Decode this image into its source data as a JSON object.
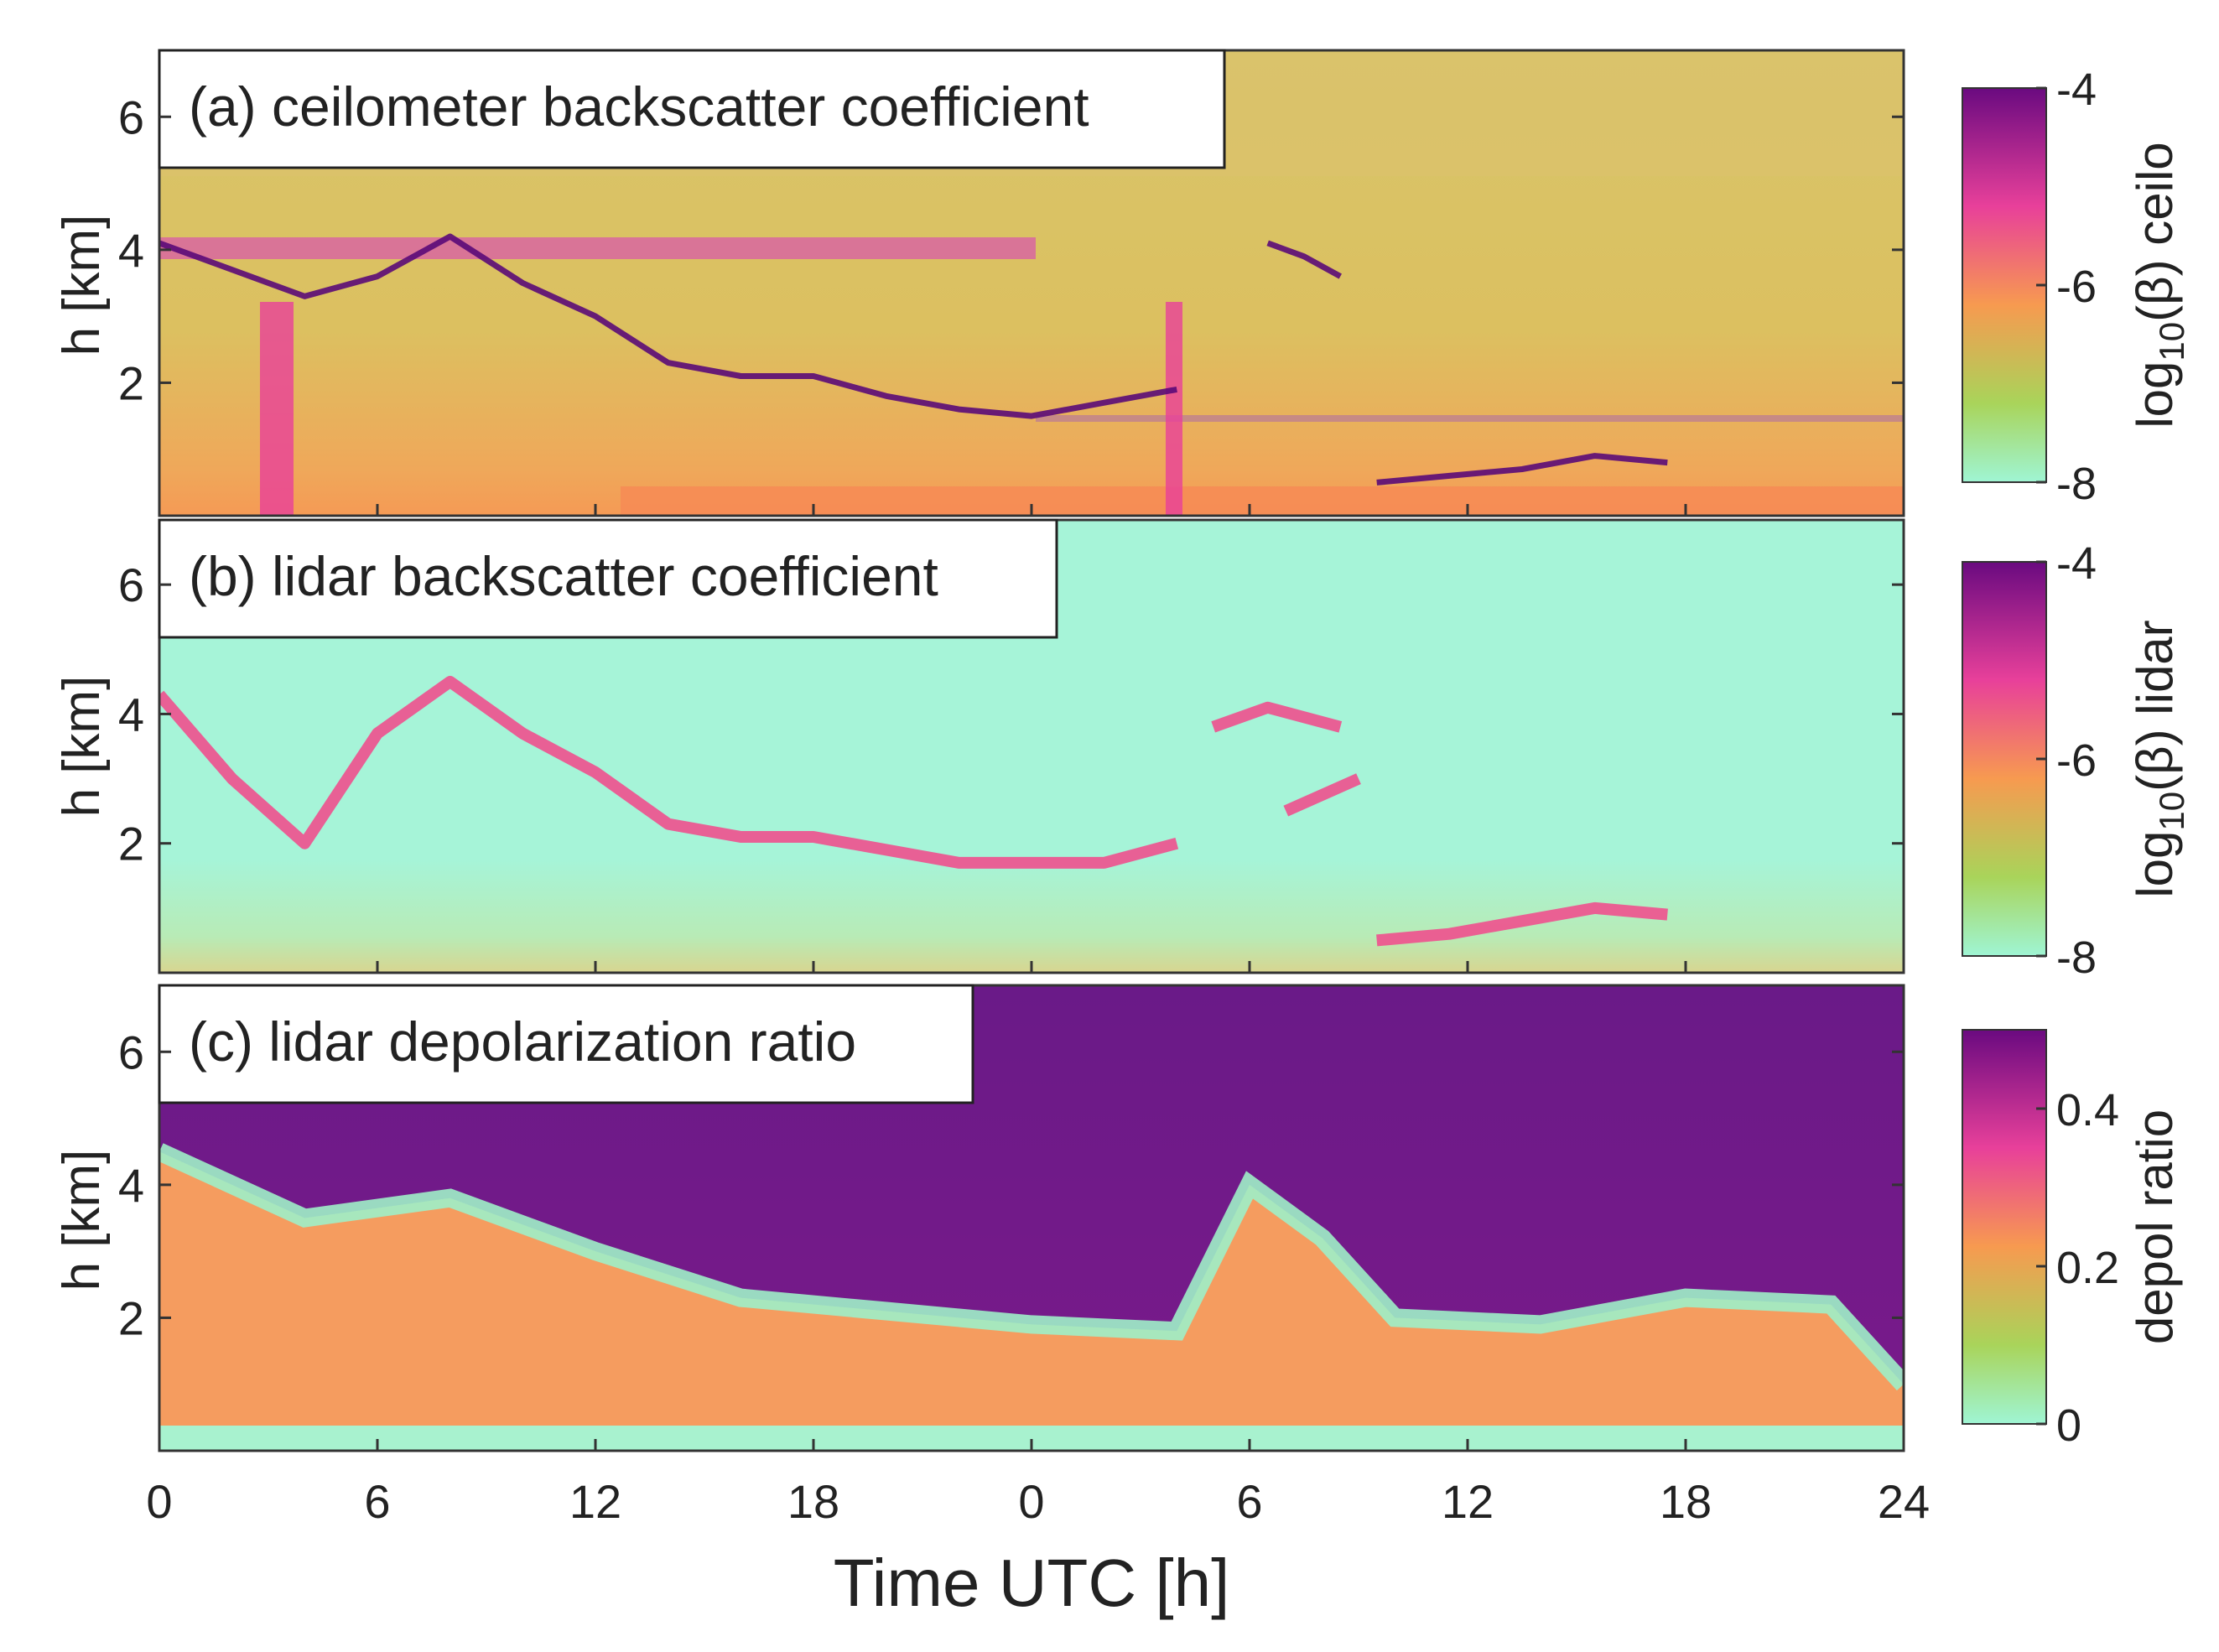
{
  "chart_data": {
    "type": "heatmap",
    "x_axis": {
      "label": "Time UTC [h]",
      "tick_labels": [
        "0",
        "6",
        "12",
        "18",
        "0",
        "6",
        "12",
        "18",
        "24"
      ],
      "tick_values_h": [
        0,
        6,
        12,
        18,
        24,
        30,
        36,
        42,
        48
      ],
      "range_h": [
        0,
        48
      ]
    },
    "y_axis": {
      "label": "h [km]",
      "tick_labels": [
        "2",
        "4",
        "6"
      ],
      "tick_values_km": [
        2,
        4,
        6
      ],
      "range_km": [
        0,
        7
      ]
    },
    "panels": [
      {
        "id": "a",
        "title": "(a) ceilometer backscatter coefficient",
        "colorbar": {
          "label_prefix": "log",
          "label_subscript": "10",
          "label_suffix": "(β) ceilo",
          "ticks": [
            "-4",
            "-6",
            "-8"
          ],
          "tick_values": [
            -4,
            -6,
            -8
          ],
          "range": [
            -8,
            -4
          ]
        },
        "cloud_layers": [
          {
            "t": [
              0,
              2,
              4,
              6,
              8,
              10,
              12,
              14,
              16,
              18,
              20,
              22,
              24,
              26,
              28
            ],
            "h": [
              4.1,
              3.7,
              3.3,
              3.6,
              4.2,
              3.5,
              3.0,
              2.3,
              2.1,
              2.1,
              1.8,
              1.6,
              1.5,
              1.7,
              1.9
            ]
          },
          {
            "t": [
              30.5,
              31.5,
              32.5
            ],
            "h": [
              4.1,
              3.9,
              3.6
            ]
          },
          {
            "t": [
              33.5,
              35.5,
              37.5,
              39.5,
              41.5
            ],
            "h": [
              0.5,
              0.6,
              0.7,
              0.9,
              0.8
            ]
          }
        ]
      },
      {
        "id": "b",
        "title": "(b) lidar backscatter coefficient",
        "colorbar": {
          "label_prefix": "log",
          "label_subscript": "10",
          "label_suffix": "(β) lidar",
          "ticks": [
            "-4",
            "-6",
            "-8"
          ],
          "tick_values": [
            -4,
            -6,
            -8
          ],
          "range": [
            -8,
            -4
          ]
        },
        "cloud_layers": [
          {
            "t": [
              0,
              2,
              4,
              6,
              8,
              10,
              12,
              14,
              16,
              18,
              20,
              22,
              24,
              26,
              28
            ],
            "h": [
              4.3,
              3.0,
              2.0,
              3.7,
              4.5,
              3.7,
              3.1,
              2.3,
              2.1,
              2.1,
              1.9,
              1.7,
              1.7,
              1.7,
              2.0
            ]
          },
          {
            "t": [
              29,
              30.5,
              32.5
            ],
            "h": [
              3.8,
              4.1,
              3.8
            ]
          },
          {
            "t": [
              31,
              33
            ],
            "h": [
              2.5,
              3.0
            ]
          },
          {
            "t": [
              33.5,
              35.5,
              37.5,
              39.5,
              41.5
            ],
            "h": [
              0.5,
              0.6,
              0.8,
              1.0,
              0.9
            ]
          }
        ]
      },
      {
        "id": "c",
        "title": "(c) lidar depolarization ratio",
        "colorbar": {
          "label": "depol ratio",
          "ticks": [
            "0.4",
            "0.2",
            "0"
          ],
          "tick_values": [
            0.4,
            0.2,
            0
          ],
          "range": [
            0,
            0.5
          ]
        },
        "aerosol_top_km": {
          "t": [
            0,
            4,
            8,
            12,
            16,
            20,
            24,
            28,
            30,
            32,
            34,
            38,
            42,
            46,
            48
          ],
          "h": [
            4.5,
            3.5,
            3.8,
            3.0,
            2.3,
            2.1,
            1.9,
            1.8,
            4.0,
            3.2,
            2.0,
            1.9,
            2.3,
            2.2,
            1.0
          ]
        }
      }
    ]
  }
}
